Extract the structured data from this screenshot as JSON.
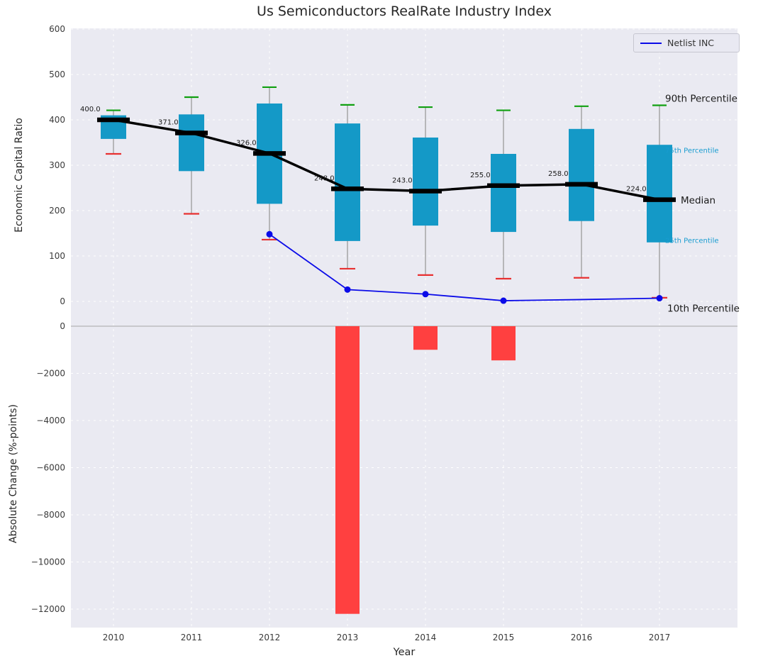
{
  "title": "Us Semiconductors RealRate Industry Index",
  "legend": {
    "entries": [
      {
        "label": "Netlist INC",
        "color": "#0b0be8"
      }
    ]
  },
  "chart_data": {
    "type": "boxplot+line+bar",
    "xlabel": "Year",
    "years": [
      2010,
      2011,
      2012,
      2013,
      2014,
      2015,
      2016,
      2017
    ],
    "top_panel": {
      "ylabel": "Economic Capital Ratio",
      "ylim": [
        -47,
        600
      ],
      "yticks": [
        0,
        100,
        200,
        300,
        400,
        500,
        600
      ],
      "boxes": [
        {
          "year": 2010,
          "p10": 325,
          "p25": 358,
          "median": 400,
          "p75": 410,
          "p90": 421,
          "label": "400.0"
        },
        {
          "year": 2011,
          "p10": 193,
          "p25": 287,
          "median": 371,
          "p75": 412,
          "p90": 450,
          "label": "371.0"
        },
        {
          "year": 2012,
          "p10": 136,
          "p25": 215,
          "median": 326,
          "p75": 436,
          "p90": 472,
          "label": "326.0"
        },
        {
          "year": 2013,
          "p10": 72,
          "p25": 133,
          "median": 248,
          "p75": 392,
          "p90": 433,
          "label": "248.0"
        },
        {
          "year": 2014,
          "p10": 58,
          "p25": 167,
          "median": 243,
          "p75": 361,
          "p90": 428,
          "label": "243.0"
        },
        {
          "year": 2015,
          "p10": 50,
          "p25": 153,
          "median": 255,
          "p75": 325,
          "p90": 421,
          "label": "255.0"
        },
        {
          "year": 2016,
          "p10": 52,
          "p25": 177,
          "median": 258,
          "p75": 380,
          "p90": 430,
          "label": "258.0"
        },
        {
          "year": 2017,
          "p10": 8,
          "p25": 130,
          "median": 224,
          "p75": 345,
          "p90": 432,
          "label": "224.0"
        }
      ],
      "netlist_series": {
        "name": "Netlist INC",
        "points": [
          {
            "year": 2012,
            "value": 148,
            "marker": true
          },
          {
            "year": 2013,
            "value": 26,
            "marker": true
          },
          {
            "year": 2014,
            "value": 16,
            "marker": true
          },
          {
            "year": 2015,
            "value": 1.5,
            "marker": true
          },
          {
            "year": 2016,
            "value": 4,
            "marker": false
          },
          {
            "year": 2017,
            "value": 7,
            "marker": true
          }
        ]
      },
      "annotations": [
        {
          "text": "90th Percentile",
          "value": 447,
          "dx": 8,
          "size": "large",
          "color": "#1a1a1a"
        },
        {
          "text": "75th Percentile",
          "value": 334,
          "dx": 8,
          "size": "small",
          "color": "#189cd0"
        },
        {
          "text": "Median",
          "value": 223,
          "dx": 30,
          "size": "large",
          "color": "#1a1a1a"
        },
        {
          "text": "25th Percentile",
          "value": 136,
          "dx": 8,
          "size": "small",
          "color": "#189cd0"
        },
        {
          "text": "10th Percentile",
          "value": -16,
          "dx": 11,
          "size": "large",
          "color": "#1a1a1a"
        }
      ]
    },
    "bottom_panel": {
      "ylabel": "Absolute Change (%-points)",
      "ylim": [
        -12780,
        150
      ],
      "yticks": [
        0,
        -2000,
        -4000,
        -6000,
        -8000,
        -10000,
        -12000
      ],
      "bars": [
        {
          "year": 2013,
          "value": -12200
        },
        {
          "year": 2014,
          "value": -1000
        },
        {
          "year": 2015,
          "value": -1450
        }
      ]
    },
    "grid": true,
    "legend_position": "upper right"
  },
  "colors": {
    "box_fill": "#1499c7",
    "median": "#000000",
    "netlist": "#0b0be8",
    "p90_cap": "#10a010",
    "p10_cap": "#e83030",
    "bar_negative": "#ff4040",
    "plot_bg": "#eaeaf2",
    "grid_line": "#ffffff",
    "whisker": "#9a9a9a",
    "annotation_cyan": "#189cd0",
    "tick_label": "#3a3a3a",
    "zero_line": "#b5b5b5"
  }
}
